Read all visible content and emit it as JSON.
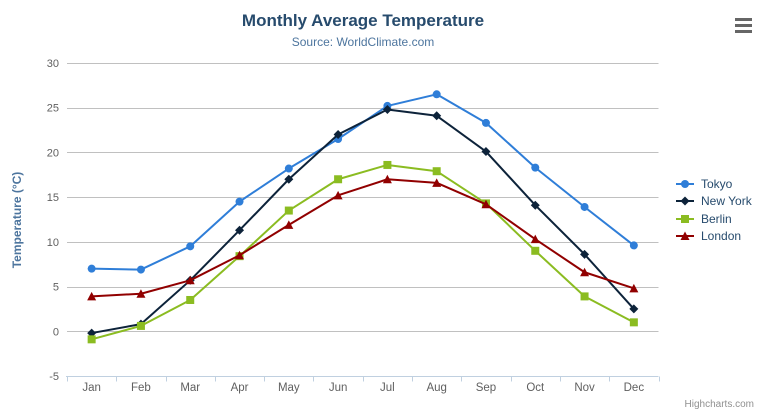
{
  "credits": "Highcharts.com",
  "export_menu": {
    "icon": "hamburger-icon"
  },
  "colors": {
    "title_text": "#274b6d",
    "subtitle_text": "#4d759e",
    "axis_title_text": "#4d759e",
    "axis_label_text": "#606060",
    "gridline": "#c0c0c0",
    "axis_line": "#c0d0e0",
    "legend_text": "#274b6d",
    "credits_text": "#909090"
  },
  "chart_data": {
    "type": "line",
    "title": "Monthly Average Temperature",
    "subtitle": "Source: WorldClimate.com",
    "xlabel": "",
    "ylabel": "Temperature (°C)",
    "ylim": [
      -5,
      30
    ],
    "ytick_interval": 5,
    "grid": true,
    "legend_position": "right",
    "categories": [
      "Jan",
      "Feb",
      "Mar",
      "Apr",
      "May",
      "Jun",
      "Jul",
      "Aug",
      "Sep",
      "Oct",
      "Nov",
      "Dec"
    ],
    "series": [
      {
        "name": "Tokyo",
        "color": "#2f7ed8",
        "marker": "circle",
        "values": [
          7.0,
          6.9,
          9.5,
          14.5,
          18.2,
          21.5,
          25.2,
          26.5,
          23.3,
          18.3,
          13.9,
          9.6
        ]
      },
      {
        "name": "New York",
        "color": "#0d233a",
        "marker": "diamond",
        "values": [
          -0.2,
          0.8,
          5.7,
          11.3,
          17.0,
          22.0,
          24.8,
          24.1,
          20.1,
          14.1,
          8.6,
          2.5
        ]
      },
      {
        "name": "Berlin",
        "color": "#8bbc21",
        "marker": "square",
        "values": [
          -0.9,
          0.6,
          3.5,
          8.4,
          13.5,
          17.0,
          18.6,
          17.9,
          14.3,
          9.0,
          3.9,
          1.0
        ]
      },
      {
        "name": "London",
        "color": "#910000",
        "marker": "triangle",
        "values": [
          3.9,
          4.2,
          5.7,
          8.5,
          11.9,
          15.2,
          17.0,
          16.6,
          14.2,
          10.3,
          6.6,
          4.8
        ]
      }
    ]
  }
}
